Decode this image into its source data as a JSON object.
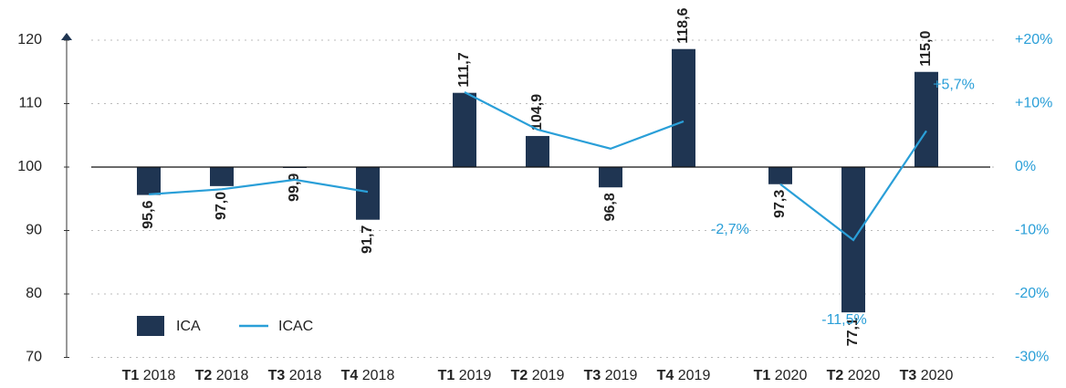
{
  "chart_data": {
    "type": "bar",
    "categories": [
      "T1 2018",
      "T2 2018",
      "T3 2018",
      "T4 2018",
      null,
      "T1 2019",
      "T2 2019",
      "T3 2019",
      "T4 2019",
      null,
      "T1 2020",
      "T2 2020",
      "T3 2020"
    ],
    "series": [
      {
        "name": "ICA",
        "type": "bar",
        "color": "#1f3552",
        "values": [
          95.6,
          97.0,
          99.9,
          91.7,
          null,
          111.7,
          104.9,
          96.8,
          118.6,
          null,
          97.3,
          77.1,
          115.0
        ],
        "value_labels": [
          "95,6",
          "97,0",
          "99,9",
          "91,7",
          null,
          "111,7",
          "104,9",
          "96,8",
          "118,6",
          null,
          "97,3",
          "77,1",
          "115,0"
        ]
      },
      {
        "name": "ICAC",
        "type": "line",
        "axis": "y2",
        "color": "#2a9fd8",
        "values": [
          -4.3,
          -3.5,
          -2.0,
          -3.9,
          null,
          11.8,
          5.9,
          2.9,
          7.2,
          null,
          -2.7,
          -11.5,
          5.7
        ],
        "value_labels": [
          null,
          null,
          null,
          null,
          null,
          null,
          null,
          null,
          null,
          null,
          "-2,7%",
          "-11,5%",
          "+5,7%"
        ]
      }
    ],
    "baseline": 100,
    "ylim": [
      70,
      120
    ],
    "yticks": [
      70,
      80,
      90,
      100,
      110,
      120
    ],
    "y2lim": [
      -30,
      20
    ],
    "y2ticks": [
      {
        "value": -30,
        "label": "-30%"
      },
      {
        "value": -20,
        "label": "-20%"
      },
      {
        "value": -10,
        "label": "-10%"
      },
      {
        "value": 0,
        "label": "0%"
      },
      {
        "value": 10,
        "label": "+10%"
      },
      {
        "value": 20,
        "label": "+20%"
      }
    ],
    "grid": true
  }
}
